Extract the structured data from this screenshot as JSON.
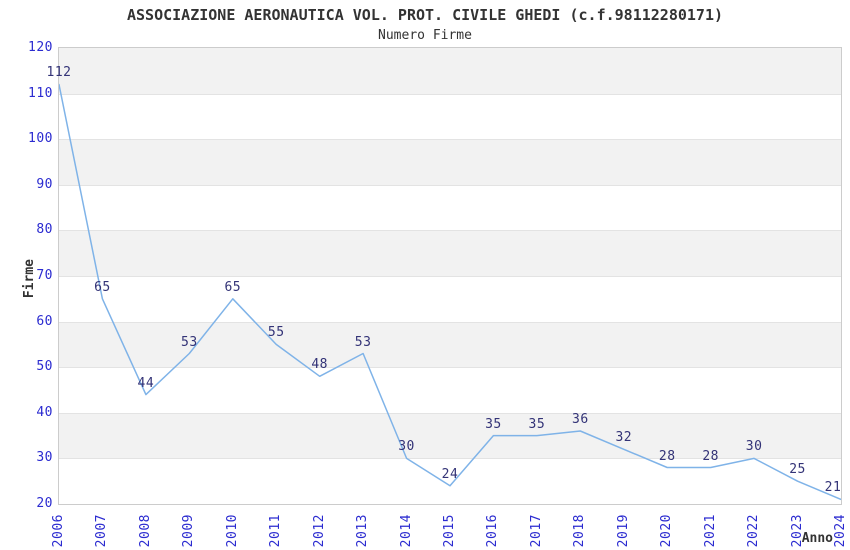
{
  "chart_data": {
    "type": "line",
    "title": "ASSOCIAZIONE AERONAUTICA VOL. PROT. CIVILE GHEDI (c.f.98112280171)",
    "subtitle": "Numero Firme",
    "xlabel": "Anno",
    "ylabel": "Firme",
    "x": [
      "2006",
      "2007",
      "2008",
      "2009",
      "2010",
      "2011",
      "2012",
      "2013",
      "2014",
      "2015",
      "2016",
      "2017",
      "2018",
      "2019",
      "2020",
      "2021",
      "2022",
      "2023",
      "2024"
    ],
    "values": [
      112,
      65,
      44,
      53,
      65,
      55,
      48,
      53,
      30,
      24,
      35,
      35,
      36,
      32,
      28,
      28,
      30,
      25,
      21
    ],
    "ylim": [
      20,
      120
    ],
    "ytick_step": 10,
    "grid": "alternating-horizontal-bands",
    "legend": "none",
    "colors": {
      "line": "#7FB3E8",
      "tick_labels": "#2B2BD0",
      "value_labels": "#333377",
      "band": "#F2F2F2",
      "plot_border": "#CCCCCC",
      "gridline": "#E3E3E3",
      "text": "#333333",
      "background": "#FFFFFF"
    }
  }
}
